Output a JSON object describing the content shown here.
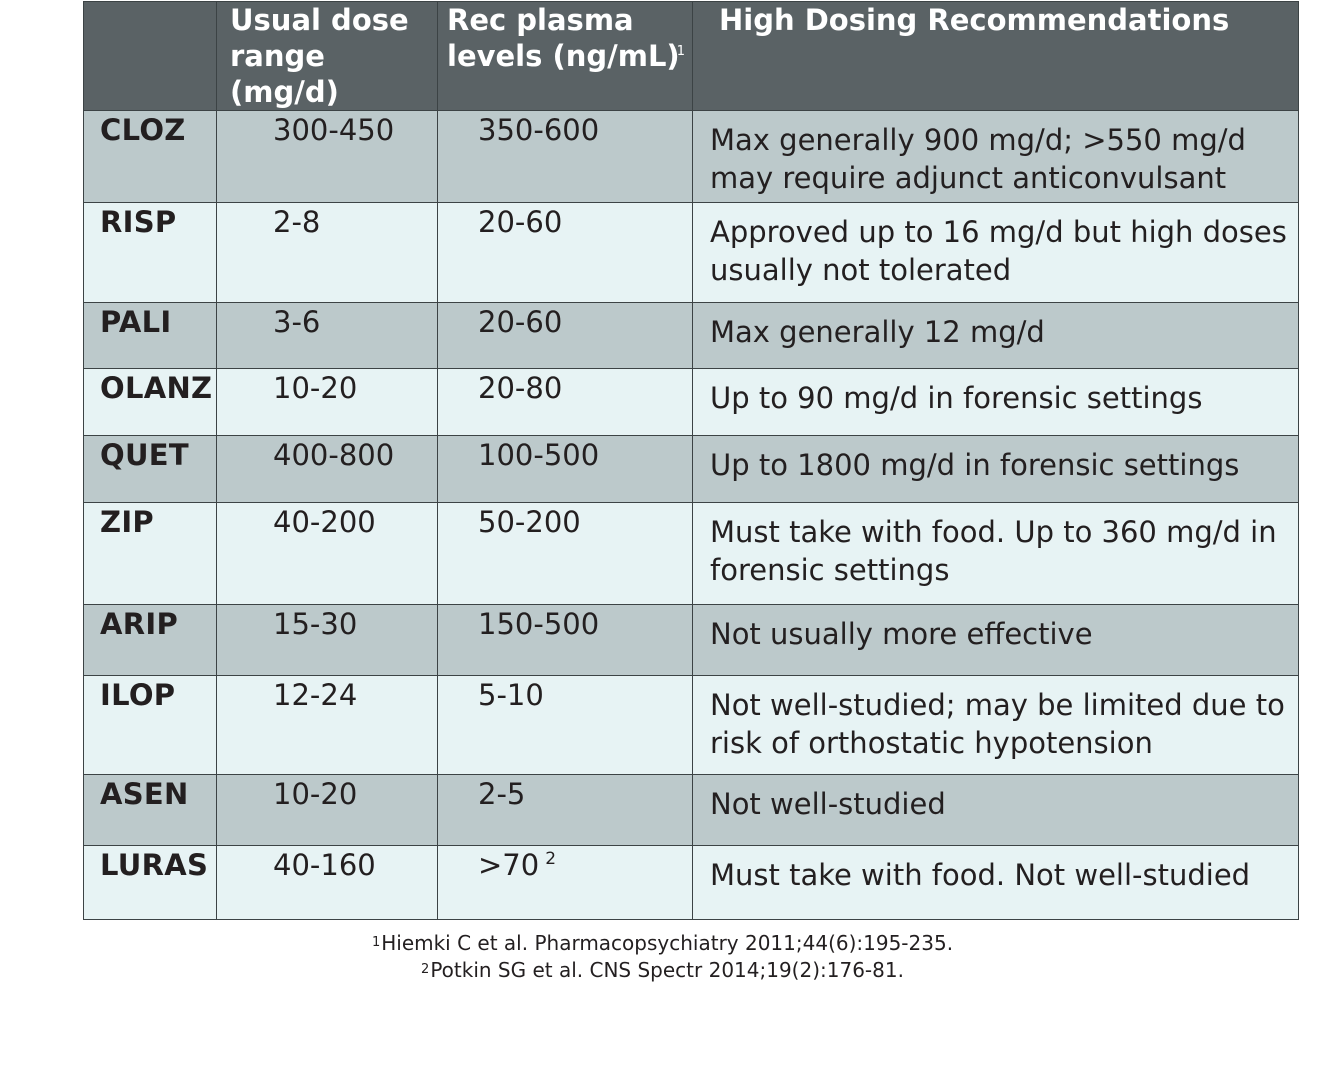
{
  "headers": {
    "drug": "",
    "dose_line1": "Usual dose",
    "dose_line2": "range (mg/d)",
    "plasma_line1": "Rec plasma",
    "plasma_line2": "levels (ng/mL)",
    "plasma_sup": "1",
    "recommendations": "High Dosing Recommendations"
  },
  "rows": [
    {
      "drug": "CLOZ",
      "dose": "300-450",
      "plasma": "350-600",
      "plasma_sup": "",
      "rec": "Max generally 900 mg/d; >550 mg/d may require adjunct anticonvulsant"
    },
    {
      "drug": "RISP",
      "dose": "2-8",
      "plasma": "20-60",
      "plasma_sup": "",
      "rec": "Approved up to 16 mg/d but high doses usually not  tolerated"
    },
    {
      "drug": "PALI",
      "dose": "3-6",
      "plasma": "20-60",
      "plasma_sup": "",
      "rec": "Max generally 12 mg/d"
    },
    {
      "drug": "OLANZ",
      "dose": "10-20",
      "plasma": "20-80",
      "plasma_sup": "",
      "rec": "Up to 90 mg/d in forensic settings"
    },
    {
      "drug": "QUET",
      "dose": "400-800",
      "plasma": "100-500",
      "plasma_sup": "",
      "rec": "Up to 1800 mg/d in forensic settings"
    },
    {
      "drug": "ZIP",
      "dose": "40-200",
      "plasma": "50-200",
      "plasma_sup": "",
      "rec": "Must take with food. Up to 360 mg/d in forensic settings"
    },
    {
      "drug": "ARIP",
      "dose": "15-30",
      "plasma": "150-500",
      "plasma_sup": "",
      "rec": "Not usually more effective"
    },
    {
      "drug": "ILOP",
      "dose": "12-24",
      "plasma": "5-10",
      "plasma_sup": "",
      "rec": "Not well-studied; may be limited due to risk of orthostatic hypotension"
    },
    {
      "drug": "ASEN",
      "dose": "10-20",
      "plasma": "2-5",
      "plasma_sup": "",
      "rec": "Not well-studied"
    },
    {
      "drug": "LURAS",
      "dose": "40-160",
      "plasma": ">70",
      "plasma_sup": "2",
      "rec": "Must take with food. Not well-studied"
    }
  ],
  "footnotes": [
    {
      "mark": "1",
      "text": "Hiemki C et al. Pharmacopsychiatry 2011;44(6):195-235."
    },
    {
      "mark": "2",
      "text": "Potkin SG et al. CNS Spectr 2014;19(2):176-81."
    }
  ]
}
